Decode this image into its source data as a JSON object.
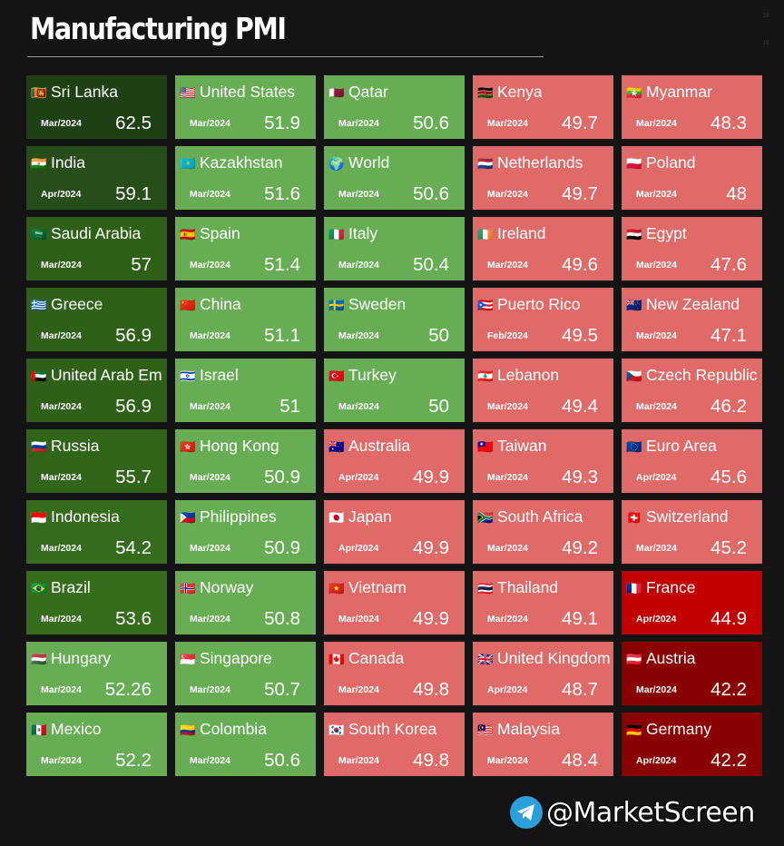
{
  "title": "Manufacturing PMI",
  "corner_marks": [
    "18",
    "18"
  ],
  "colors": {
    "dark_green": "#2f6a1c",
    "mid_green": "#3b7a24",
    "light_green": "#67ad53",
    "salmon": "#e06a68",
    "red": "#c30000",
    "dark_red": "#8a0000"
  },
  "tiles": [
    {
      "country": "Sri Lanka",
      "flag": "🇱🇰",
      "date": "Mar/2024",
      "value": "62.5",
      "color": "#1f4015"
    },
    {
      "country": "India",
      "flag": "🇮🇳",
      "date": "Apr/2024",
      "value": "59.1",
      "color": "#274d18"
    },
    {
      "country": "Saudi Arabia",
      "flag": "🇸🇦",
      "date": "Mar/2024",
      "value": "57",
      "color": "#2e6117"
    },
    {
      "country": "Greece",
      "flag": "🇬🇷",
      "date": "Mar/2024",
      "value": "56.9",
      "color": "#2e6117"
    },
    {
      "country": "United Arab Em",
      "flag": "🇦🇪",
      "date": "Mar/2024",
      "value": "56.9",
      "color": "#2e6117"
    },
    {
      "country": "Russia",
      "flag": "🇷🇺",
      "date": "Mar/2024",
      "value": "55.7",
      "color": "#306519"
    },
    {
      "country": "Indonesia",
      "flag": "🇮🇩",
      "date": "Mar/2024",
      "value": "54.2",
      "color": "#346b1c"
    },
    {
      "country": "Brazil",
      "flag": "🇧🇷",
      "date": "Mar/2024",
      "value": "53.6",
      "color": "#356d1d"
    },
    {
      "country": "Hungary",
      "flag": "🇭🇺",
      "date": "Mar/2024",
      "value": "52.26",
      "color": "#67ad53"
    },
    {
      "country": "Mexico",
      "flag": "🇲🇽",
      "date": "Mar/2024",
      "value": "52.2",
      "color": "#67ad53"
    },
    {
      "country": "United States",
      "flag": "🇺🇸",
      "date": "Mar/2024",
      "value": "51.9",
      "color": "#67ad53"
    },
    {
      "country": "Kazakhstan",
      "flag": "🇰🇿",
      "date": "Mar/2024",
      "value": "51.6",
      "color": "#67ad53"
    },
    {
      "country": "Spain",
      "flag": "🇪🇸",
      "date": "Mar/2024",
      "value": "51.4",
      "color": "#67ad53"
    },
    {
      "country": "China",
      "flag": "🇨🇳",
      "date": "Mar/2024",
      "value": "51.1",
      "color": "#67ad53"
    },
    {
      "country": "Israel",
      "flag": "🇮🇱",
      "date": "Mar/2024",
      "value": "51",
      "color": "#67ad53"
    },
    {
      "country": "Hong Kong",
      "flag": "🇭🇰",
      "date": "Mar/2024",
      "value": "50.9",
      "color": "#67ad53"
    },
    {
      "country": "Philippines",
      "flag": "🇵🇭",
      "date": "Mar/2024",
      "value": "50.9",
      "color": "#67ad53"
    },
    {
      "country": "Norway",
      "flag": "🇳🇴",
      "date": "Mar/2024",
      "value": "50.8",
      "color": "#67ad53"
    },
    {
      "country": "Singapore",
      "flag": "🇸🇬",
      "date": "Mar/2024",
      "value": "50.7",
      "color": "#67ad53"
    },
    {
      "country": "Colombia",
      "flag": "🇨🇴",
      "date": "Mar/2024",
      "value": "50.6",
      "color": "#67ad53"
    },
    {
      "country": "Qatar",
      "flag": "🇶🇦",
      "date": "Mar/2024",
      "value": "50.6",
      "color": "#67ad53"
    },
    {
      "country": "World",
      "flag": "🌍",
      "date": "Mar/2024",
      "value": "50.6",
      "color": "#67ad53"
    },
    {
      "country": "Italy",
      "flag": "🇮🇹",
      "date": "Mar/2024",
      "value": "50.4",
      "color": "#67ad53"
    },
    {
      "country": "Sweden",
      "flag": "🇸🇪",
      "date": "Mar/2024",
      "value": "50",
      "color": "#67ad53"
    },
    {
      "country": "Turkey",
      "flag": "🇹🇷",
      "date": "Mar/2024",
      "value": "50",
      "color": "#67ad53"
    },
    {
      "country": "Australia",
      "flag": "🇦🇺",
      "date": "Apr/2024",
      "value": "49.9",
      "color": "#e06a68"
    },
    {
      "country": "Japan",
      "flag": "🇯🇵",
      "date": "Apr/2024",
      "value": "49.9",
      "color": "#e06a68"
    },
    {
      "country": "Vietnam",
      "flag": "🇻🇳",
      "date": "Mar/2024",
      "value": "49.9",
      "color": "#e06a68"
    },
    {
      "country": "Canada",
      "flag": "🇨🇦",
      "date": "Mar/2024",
      "value": "49.8",
      "color": "#e06a68"
    },
    {
      "country": "South Korea",
      "flag": "🇰🇷",
      "date": "Mar/2024",
      "value": "49.8",
      "color": "#e06a68"
    },
    {
      "country": "Kenya",
      "flag": "🇰🇪",
      "date": "Mar/2024",
      "value": "49.7",
      "color": "#e06a68"
    },
    {
      "country": "Netherlands",
      "flag": "🇳🇱",
      "date": "Mar/2024",
      "value": "49.7",
      "color": "#e06a68"
    },
    {
      "country": "Ireland",
      "flag": "🇮🇪",
      "date": "Mar/2024",
      "value": "49.6",
      "color": "#e06a68"
    },
    {
      "country": "Puerto Rico",
      "flag": "🇵🇷",
      "date": "Feb/2024",
      "value": "49.5",
      "color": "#e06a68"
    },
    {
      "country": "Lebanon",
      "flag": "🇱🇧",
      "date": "Mar/2024",
      "value": "49.4",
      "color": "#e06a68"
    },
    {
      "country": "Taiwan",
      "flag": "🇹🇼",
      "date": "Mar/2024",
      "value": "49.3",
      "color": "#e06a68"
    },
    {
      "country": "South Africa",
      "flag": "🇿🇦",
      "date": "Mar/2024",
      "value": "49.2",
      "color": "#e06a68"
    },
    {
      "country": "Thailand",
      "flag": "🇹🇭",
      "date": "Mar/2024",
      "value": "49.1",
      "color": "#e06a68"
    },
    {
      "country": "United Kingdom",
      "flag": "🇬🇧",
      "date": "Apr/2024",
      "value": "48.7",
      "color": "#e06a68"
    },
    {
      "country": "Malaysia",
      "flag": "🇲🇾",
      "date": "Mar/2024",
      "value": "48.4",
      "color": "#e06a68"
    },
    {
      "country": "Myanmar",
      "flag": "🇲🇲",
      "date": "Mar/2024",
      "value": "48.3",
      "color": "#e06a68"
    },
    {
      "country": "Poland",
      "flag": "🇵🇱",
      "date": "Mar/2024",
      "value": "48",
      "color": "#e06a68"
    },
    {
      "country": "Egypt",
      "flag": "🇪🇬",
      "date": "Mar/2024",
      "value": "47.6",
      "color": "#e06a68"
    },
    {
      "country": "New Zealand",
      "flag": "🇳🇿",
      "date": "Mar/2024",
      "value": "47.1",
      "color": "#e06a68"
    },
    {
      "country": "Czech Republic",
      "flag": "🇨🇿",
      "date": "Mar/2024",
      "value": "46.2",
      "color": "#e06a68"
    },
    {
      "country": "Euro Area",
      "flag": "🇪🇺",
      "date": "Apr/2024",
      "value": "45.6",
      "color": "#e06a68"
    },
    {
      "country": "Switzerland",
      "flag": "🇨🇭",
      "date": "Mar/2024",
      "value": "45.2",
      "color": "#e06a68"
    },
    {
      "country": "France",
      "flag": "🇫🇷",
      "date": "Apr/2024",
      "value": "44.9",
      "color": "#c30000"
    },
    {
      "country": "Austria",
      "flag": "🇦🇹",
      "date": "Mar/2024",
      "value": "42.2",
      "color": "#8a0000"
    },
    {
      "country": "Germany",
      "flag": "🇩🇪",
      "date": "Apr/2024",
      "value": "42.2",
      "color": "#8a0000"
    }
  ],
  "brand": {
    "handle": "@MarketScreen",
    "icon": "telegram-icon"
  }
}
